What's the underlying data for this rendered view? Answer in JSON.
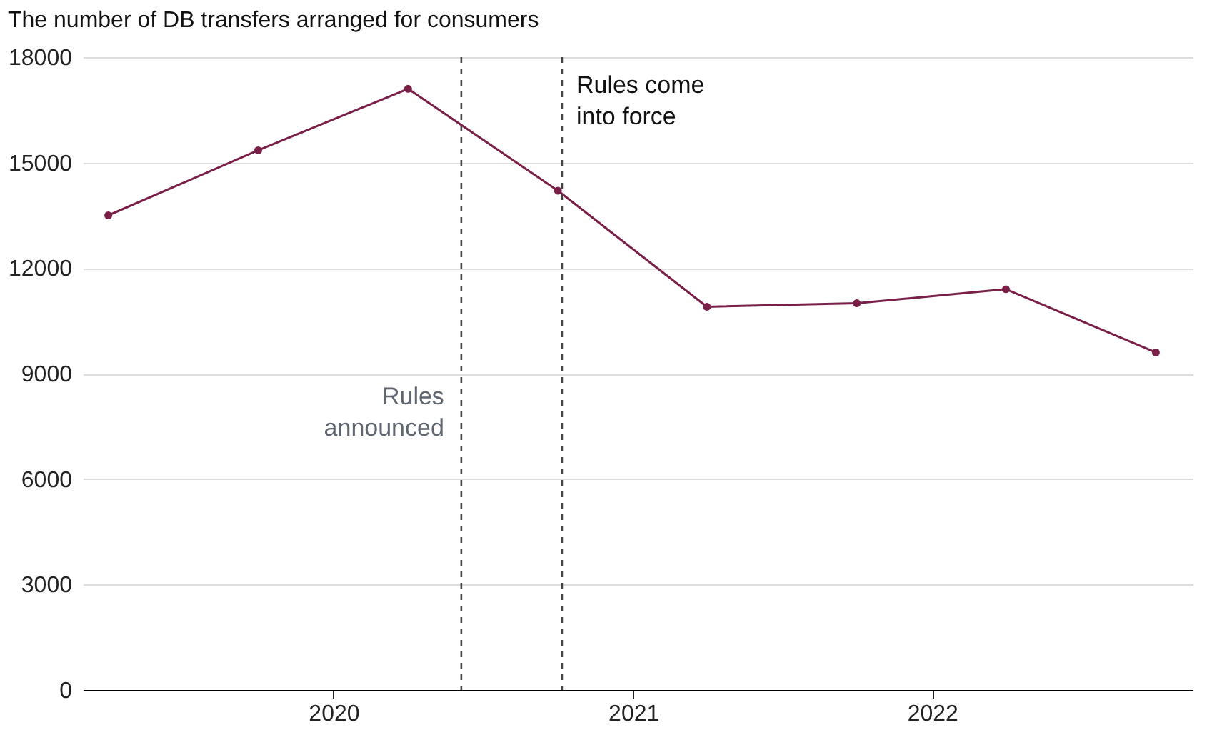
{
  "chart_data": {
    "type": "line",
    "title": "The number of DB transfers arranged for consumers",
    "x": [
      "2019-04-01",
      "2019-10-01",
      "2020-04-01",
      "2020-10-01",
      "2021-04-01",
      "2021-10-01",
      "2022-04-01",
      "2022-10-01"
    ],
    "series": [
      {
        "color": "#7a2048",
        "values": [
          13500,
          15350,
          17100,
          14200,
          10900,
          11000,
          11400,
          9600
        ]
      }
    ],
    "xlim": [
      "2019-03-01",
      "2022-11-15"
    ],
    "xticks": [
      {
        "value": "2020-01-01",
        "label": "2020"
      },
      {
        "value": "2021-01-01",
        "label": "2021"
      },
      {
        "value": "2022-01-01",
        "label": "2022"
      }
    ],
    "ylim": [
      0,
      18000
    ],
    "yticks": [
      0,
      3000,
      6000,
      9000,
      12000,
      15000,
      18000
    ],
    "ref_lines": [
      {
        "axis": "x",
        "value": "2020-06-05",
        "label": "Rules\nannounced",
        "color": "#444444",
        "line_style": "dashed"
      },
      {
        "axis": "x",
        "value": "2020-10-06",
        "label": "Rules come\ninto force",
        "color": "#444444",
        "line_style": "dashed"
      }
    ],
    "grid": "y",
    "marker": "circle",
    "line_style": "solid"
  }
}
